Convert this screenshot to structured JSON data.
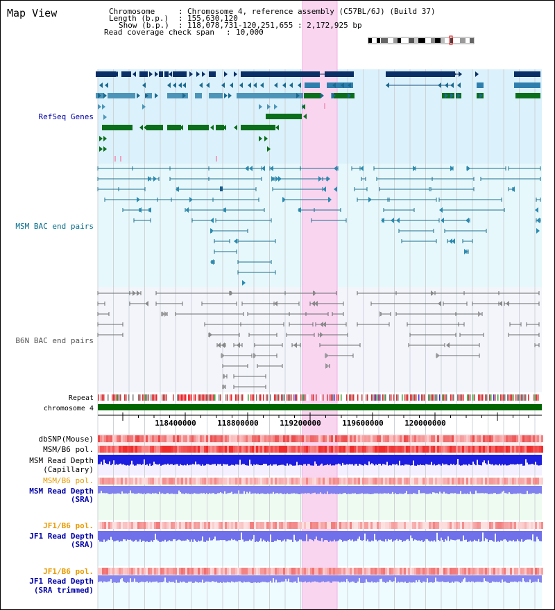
{
  "title": "Map View",
  "header": {
    "chromosome_label": "Chromosome",
    "chromosome_value": "Chromosome 4, reference assembly (C57BL/6J) (Build 37)",
    "length_label": "Length (b.p.)",
    "length_value": "155,630,120",
    "show_label": "Show (b.p.)",
    "show_value": "118,078,731-120,251,655 : 2,172,925 bp",
    "coverage_label": "Read coverage check span",
    "coverage_value": "10,000"
  },
  "tracks": {
    "refseq": "RefSeq Genes",
    "msm_bac": "MSM BAC end pairs",
    "b6n_bac": "B6N BAC end pairs",
    "repeat": "Repeat",
    "chromosome": "chromosome 4",
    "dbsnp": "dbSNP(Mouse)",
    "msm_b6_pol_1": "MSM/B6 pol.",
    "msm_depth_cap_1": "MSM Read Depth",
    "msm_depth_cap_2": "(Capillary)",
    "msm_b6_pol_2": "MSM/B6 pol.",
    "msm_depth_sra_1": "MSM Read Depth",
    "msm_depth_sra_2": "(SRA)",
    "jf1_b6_pol_1": "JF1/B6 pol.",
    "jf1_depth_sra_1": "JF1 Read Depth",
    "jf1_depth_sra_2": "(SRA)",
    "jf1_b6_pol_2": "JF1/B6 pol.",
    "jf1_depth_trim_1": "JF1 Read Depth",
    "jf1_depth_trim_2": "(SRA trimmed)"
  },
  "axis_ticks": [
    "118400000",
    "118800000",
    "119200000",
    "119600000",
    "120000000"
  ],
  "colors": {
    "refseq_bg": "#dbf1fb",
    "msm_bg": "#e6f8fb",
    "b6n_bg": "#f3f5fb",
    "highlight": "#f9d5f0",
    "label_blue": "#0000aa",
    "label_teal": "#006b8a",
    "label_gray": "#555555",
    "label_orange": "#e89a00",
    "chromosome_green": "#006400"
  }
}
